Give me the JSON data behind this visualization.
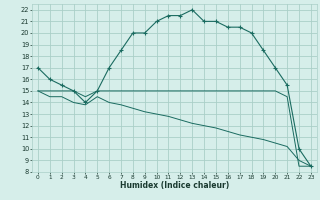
{
  "title": "",
  "xlabel": "Humidex (Indice chaleur)",
  "bg_color": "#d6eeea",
  "grid_color": "#aacfc8",
  "line_color": "#1a6b60",
  "xlim": [
    -0.5,
    23.5
  ],
  "ylim": [
    8,
    22.5
  ],
  "xticks": [
    0,
    1,
    2,
    3,
    4,
    5,
    6,
    7,
    8,
    9,
    10,
    11,
    12,
    13,
    14,
    15,
    16,
    17,
    18,
    19,
    20,
    21,
    22,
    23
  ],
  "yticks": [
    8,
    9,
    10,
    11,
    12,
    13,
    14,
    15,
    16,
    17,
    18,
    19,
    20,
    21,
    22
  ],
  "curve1_x": [
    0,
    1,
    2,
    3,
    4,
    5,
    6,
    7,
    8,
    9,
    10,
    11,
    12,
    13,
    14,
    15,
    16,
    17,
    18,
    19,
    20,
    21,
    22,
    23
  ],
  "curve1_y": [
    17.0,
    16.0,
    15.5,
    15.0,
    14.0,
    15.0,
    17.0,
    18.5,
    20.0,
    20.0,
    21.0,
    21.5,
    21.5,
    22.0,
    21.0,
    21.0,
    20.5,
    20.5,
    20.0,
    18.5,
    17.0,
    15.5,
    10.0,
    8.5
  ],
  "curve2_full_x": [
    0,
    1,
    2,
    3,
    4,
    5,
    6,
    7,
    8,
    9,
    10,
    11,
    12,
    13,
    14,
    15,
    16,
    17,
    18,
    19,
    20,
    21,
    22,
    23
  ],
  "curve2_full_y": [
    15.0,
    15.0,
    15.0,
    15.0,
    14.5,
    15.0,
    15.0,
    15.0,
    15.0,
    15.0,
    15.0,
    15.0,
    15.0,
    15.0,
    15.0,
    15.0,
    15.0,
    15.0,
    15.0,
    15.0,
    15.0,
    14.5,
    8.5,
    8.5
  ],
  "curve3_x": [
    0,
    1,
    2,
    3,
    4,
    5,
    6,
    7,
    8,
    9,
    10,
    11,
    12,
    13,
    14,
    15,
    16,
    17,
    18,
    19,
    20,
    21,
    22,
    23
  ],
  "curve3_y": [
    15.0,
    14.5,
    14.5,
    14.0,
    13.8,
    14.5,
    14.0,
    13.8,
    13.5,
    13.2,
    13.0,
    12.8,
    12.5,
    12.2,
    12.0,
    11.8,
    11.5,
    11.2,
    11.0,
    10.8,
    10.5,
    10.2,
    9.0,
    8.5
  ]
}
